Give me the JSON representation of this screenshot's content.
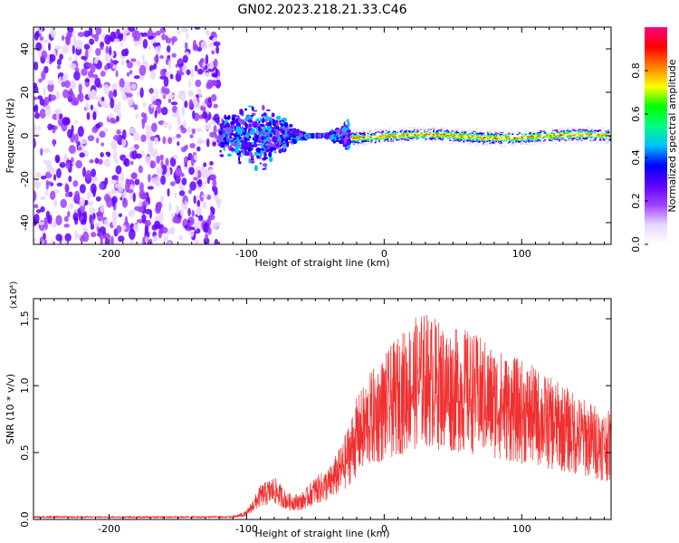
{
  "title": "GN02.2023.218.21.33.C46",
  "chart_data": [
    {
      "type": "heatmap",
      "xlabel": "Height of straight line (km)",
      "ylabel": "Frequency (Hz)",
      "xlim": [
        -255,
        165
      ],
      "ylim": [
        -50,
        50
      ],
      "x_ticks": [
        -200,
        -100,
        0,
        100
      ],
      "y_ticks": [
        -40,
        -20,
        0,
        20,
        40
      ],
      "colorbar": {
        "label": "Normalized spectral amplitude",
        "range": [
          0,
          1
        ],
        "ticks": [
          0.0,
          0.2,
          0.4,
          0.6,
          0.8
        ],
        "colors": [
          "#ffffff",
          "#e9d6ff",
          "#a040ff",
          "#6000ff",
          "#0000ff",
          "#00c0ff",
          "#00ff80",
          "#00ff00",
          "#ffff00",
          "#ff8000",
          "#ff0000",
          "#ff0080"
        ]
      },
      "regions": [
        {
          "x_range": [
            -255,
            -120
          ],
          "y_range": [
            -50,
            50
          ],
          "amplitude": 0.1
        },
        {
          "x_range": [
            -120,
            -25
          ],
          "y_range": [
            -15,
            12
          ],
          "amplitude": 0.25
        },
        {
          "x_range": [
            -25,
            165
          ],
          "y_range": [
            -3,
            2
          ],
          "amplitude": 0.75
        }
      ]
    },
    {
      "type": "line",
      "xlabel": "Height of straight line (km)",
      "ylabel": "SNR (10 * v/v)",
      "y_multiplier": "(x10⁴)",
      "xlim": [
        -255,
        165
      ],
      "ylim": [
        0,
        1.65
      ],
      "x_ticks": [
        -200,
        -100,
        0,
        100
      ],
      "y_ticks": [
        0.0,
        0.5,
        1.0,
        1.5
      ],
      "color": "#f03030",
      "envelope": {
        "x": [
          -255,
          -110,
          -100,
          -90,
          -80,
          -70,
          -60,
          -50,
          -40,
          -30,
          -20,
          -10,
          0,
          10,
          20,
          30,
          40,
          50,
          60,
          70,
          80,
          90,
          100,
          110,
          120,
          130,
          140,
          150,
          165
        ],
        "y": [
          0.02,
          0.02,
          0.05,
          0.2,
          0.25,
          0.15,
          0.15,
          0.25,
          0.3,
          0.45,
          0.7,
          0.85,
          0.95,
          1.05,
          1.15,
          1.2,
          1.15,
          1.1,
          1.1,
          1.05,
          1.0,
          0.95,
          0.92,
          0.88,
          0.82,
          0.78,
          0.72,
          0.68,
          0.62
        ]
      }
    }
  ]
}
